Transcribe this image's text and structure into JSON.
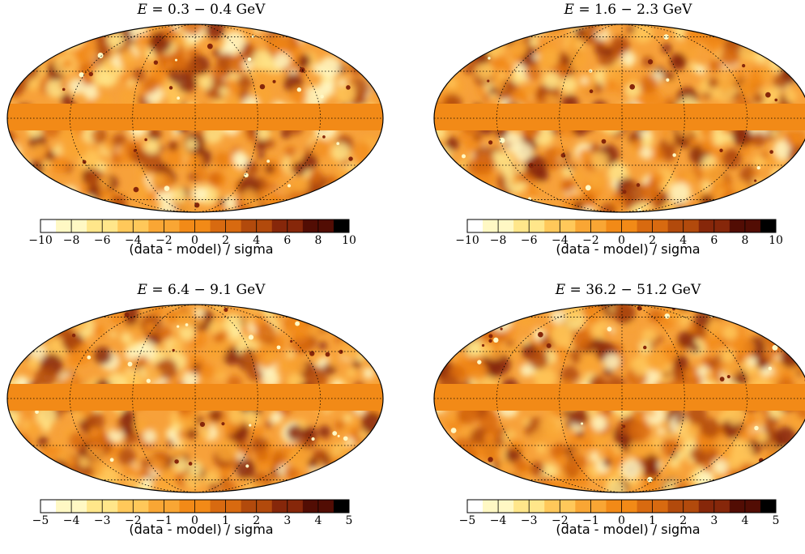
{
  "panels": [
    {
      "title_prefix": "E",
      "title_range": "= 0.3 − 0.4 GeV",
      "colorbar_ticks": [
        "−10",
        "−8",
        "−6",
        "−4",
        "−2",
        "0",
        "2",
        "4",
        "6",
        "8",
        "10"
      ],
      "colorbar_label": "(data - model) / sigma"
    },
    {
      "title_prefix": "E",
      "title_range": "= 1.6 − 2.3 GeV",
      "colorbar_ticks": [
        "−10",
        "−8",
        "−6",
        "−4",
        "−2",
        "0",
        "2",
        "4",
        "6",
        "8",
        "10"
      ],
      "colorbar_label": "(data - model) / sigma"
    },
    {
      "title_prefix": "E",
      "title_range": "= 6.4 − 9.1 GeV",
      "colorbar_ticks": [
        "−5",
        "−4",
        "−3",
        "−2",
        "−1",
        "0",
        "1",
        "2",
        "3",
        "4",
        "5"
      ],
      "colorbar_label": "(data - model) / sigma"
    },
    {
      "title_prefix": "E",
      "title_range": "= 36.2 − 51.2 GeV",
      "colorbar_ticks": [
        "−5",
        "−4",
        "−3",
        "−2",
        "−1",
        "0",
        "1",
        "2",
        "3",
        "4",
        "5"
      ],
      "colorbar_label": "(data - model) / sigma"
    }
  ],
  "colors": {
    "band": "#f28a17",
    "colormap": [
      "#ffffff",
      "#fff8c4",
      "#ffe68a",
      "#ffc85a",
      "#f9a634",
      "#f28a17",
      "#d86a10",
      "#b24a0c",
      "#86270a",
      "#520d04",
      "#000000"
    ]
  }
}
